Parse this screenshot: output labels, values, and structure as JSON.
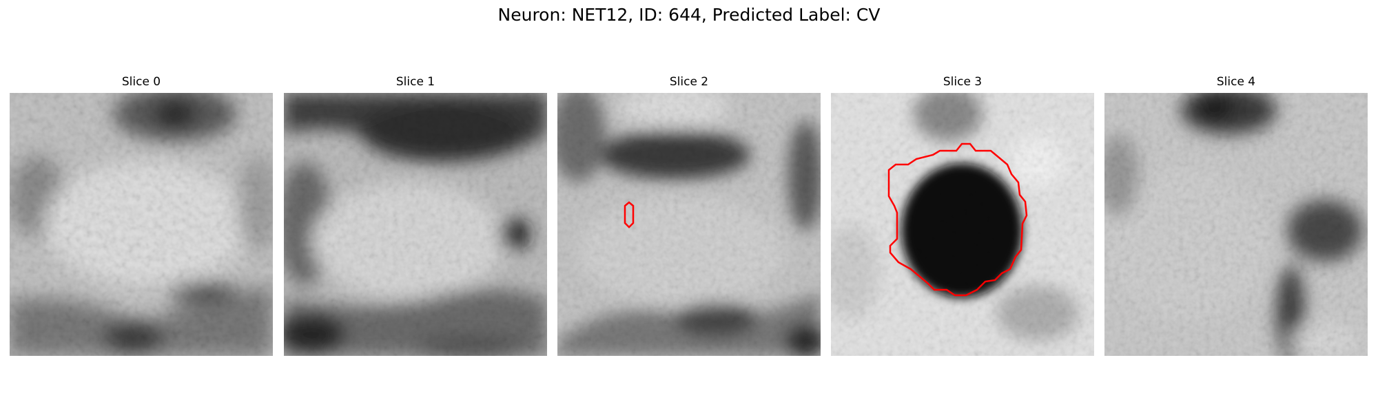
{
  "figure": {
    "title": "Neuron: NET12, ID: 644, Predicted Label: CV"
  },
  "panels": [
    {
      "title": "Slice 0",
      "contour": "none"
    },
    {
      "title": "Slice 1",
      "contour": "none"
    },
    {
      "title": "Slice 2",
      "contour": "small-vertical-contour"
    },
    {
      "title": "Slice 3",
      "contour": "large-vesicle-contour"
    },
    {
      "title": "Slice 4",
      "contour": "none"
    }
  ],
  "style": {
    "contour_color": "#ff0000",
    "colormap": "grayscale"
  }
}
